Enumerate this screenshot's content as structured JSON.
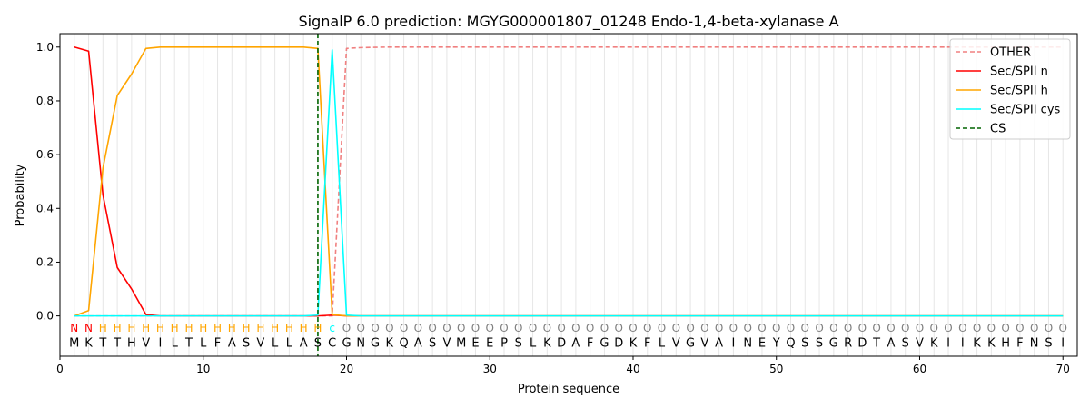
{
  "chart_data": {
    "type": "line",
    "title": "SignalP 6.0 prediction: MGYG000001807_01248 Endo-1,4-beta-xylanase A",
    "xlabel": "Protein sequence",
    "ylabel": "Probability",
    "xlim": [
      0,
      71
    ],
    "ylim": [
      -0.15,
      1.05
    ],
    "xticks": [
      0,
      10,
      20,
      30,
      40,
      50,
      60,
      70
    ],
    "yticks": [
      0.0,
      0.2,
      0.4,
      0.6,
      0.8,
      1.0
    ],
    "xtick_labels": [
      "0",
      "10",
      "20",
      "30",
      "40",
      "50",
      "60",
      "70"
    ],
    "ytick_labels": [
      "0.0",
      "0.2",
      "0.4",
      "0.6",
      "0.8",
      "1.0"
    ],
    "legend_position": "top-right",
    "sequence": [
      "M",
      "K",
      "T",
      "T",
      "H",
      "V",
      "I",
      "L",
      "T",
      "L",
      "F",
      "A",
      "S",
      "V",
      "L",
      "L",
      "A",
      "S",
      "C",
      "G",
      "N",
      "G",
      "K",
      "Q",
      "A",
      "S",
      "V",
      "M",
      "E",
      "E",
      "P",
      "S",
      "L",
      "K",
      "D",
      "A",
      "F",
      "G",
      "D",
      "K",
      "F",
      "L",
      "V",
      "G",
      "V",
      "A",
      "I",
      "N",
      "E",
      "Y",
      "Q",
      "S",
      "S",
      "G",
      "R",
      "D",
      "T",
      "A",
      "S",
      "V",
      "K",
      "I",
      "I",
      "K",
      "K",
      "H",
      "F",
      "N",
      "S",
      "I"
    ],
    "region_labels": [
      "N",
      "N",
      "H",
      "H",
      "H",
      "H",
      "H",
      "H",
      "H",
      "H",
      "H",
      "H",
      "H",
      "H",
      "H",
      "H",
      "H",
      "H",
      "c",
      "O",
      "O",
      "O",
      "O",
      "O",
      "O",
      "O",
      "O",
      "O",
      "O",
      "O",
      "O",
      "O",
      "O",
      "O",
      "O",
      "O",
      "O",
      "O",
      "O",
      "O",
      "O",
      "O",
      "O",
      "O",
      "O",
      "O",
      "O",
      "O",
      "O",
      "O",
      "O",
      "O",
      "O",
      "O",
      "O",
      "O",
      "O",
      "O",
      "O",
      "O",
      "O",
      "O",
      "O",
      "O",
      "O",
      "O",
      "O",
      "O",
      "O",
      "O"
    ],
    "region_colors": {
      "N": "#ff0000",
      "H": "#ffa500",
      "c": "#00ffff",
      "O": "#808080"
    },
    "cleavage_site": 18,
    "series": [
      {
        "name": "OTHER",
        "color": "#f08080",
        "dash": "dashed",
        "values": [
          0,
          0,
          0,
          0,
          0,
          0,
          0,
          0,
          0,
          0,
          0,
          0,
          0,
          0,
          0,
          0,
          0,
          0,
          0,
          0.995,
          0.998,
          0.999,
          1,
          1,
          1,
          1,
          1,
          1,
          1,
          1,
          1,
          1,
          1,
          1,
          1,
          1,
          1,
          1,
          1,
          1,
          1,
          1,
          1,
          1,
          1,
          1,
          1,
          1,
          1,
          1,
          1,
          1,
          1,
          1,
          1,
          1,
          1,
          1,
          1,
          1,
          1,
          1,
          1,
          1,
          1,
          1,
          1,
          1,
          1,
          1
        ]
      },
      {
        "name": "Sec/SPII n",
        "color": "#ff0000",
        "dash": "solid",
        "values": [
          1.0,
          0.985,
          0.45,
          0.18,
          0.1,
          0.005,
          0,
          0,
          0,
          0,
          0,
          0,
          0,
          0,
          0,
          0,
          0,
          0.0,
          0.003,
          0,
          0,
          0,
          0,
          0,
          0,
          0,
          0,
          0,
          0,
          0,
          0,
          0,
          0,
          0,
          0,
          0,
          0,
          0,
          0,
          0,
          0,
          0,
          0,
          0,
          0,
          0,
          0,
          0,
          0,
          0,
          0,
          0,
          0,
          0,
          0,
          0,
          0,
          0,
          0,
          0,
          0,
          0,
          0,
          0,
          0,
          0,
          0,
          0,
          0,
          0
        ]
      },
      {
        "name": "Sec/SPII h",
        "color": "#ffa500",
        "dash": "solid",
        "values": [
          0.0,
          0.02,
          0.55,
          0.82,
          0.9,
          0.995,
          1.0,
          1.0,
          1.0,
          1.0,
          1.0,
          1.0,
          1.0,
          1.0,
          1.0,
          1.0,
          1.0,
          0.995,
          0.005,
          0,
          0,
          0,
          0,
          0,
          0,
          0,
          0,
          0,
          0,
          0,
          0,
          0,
          0,
          0,
          0,
          0,
          0,
          0,
          0,
          0,
          0,
          0,
          0,
          0,
          0,
          0,
          0,
          0,
          0,
          0,
          0,
          0,
          0,
          0,
          0,
          0,
          0,
          0,
          0,
          0,
          0,
          0,
          0,
          0,
          0,
          0,
          0,
          0,
          0,
          0
        ]
      },
      {
        "name": "Sec/SPII cys",
        "color": "#00ffff",
        "dash": "solid",
        "values": [
          0,
          0,
          0,
          0,
          0,
          0,
          0,
          0,
          0,
          0,
          0,
          0,
          0,
          0,
          0,
          0,
          0,
          0.003,
          0.99,
          0.003,
          0,
          0,
          0,
          0,
          0,
          0,
          0,
          0,
          0,
          0,
          0,
          0,
          0,
          0,
          0,
          0,
          0,
          0,
          0,
          0,
          0,
          0,
          0,
          0,
          0,
          0,
          0,
          0,
          0,
          0,
          0,
          0,
          0,
          0,
          0,
          0,
          0,
          0,
          0,
          0,
          0,
          0,
          0,
          0,
          0,
          0,
          0,
          0,
          0,
          0
        ]
      },
      {
        "name": "CS",
        "color": "#006400",
        "dash": "dashed",
        "values": []
      }
    ]
  }
}
